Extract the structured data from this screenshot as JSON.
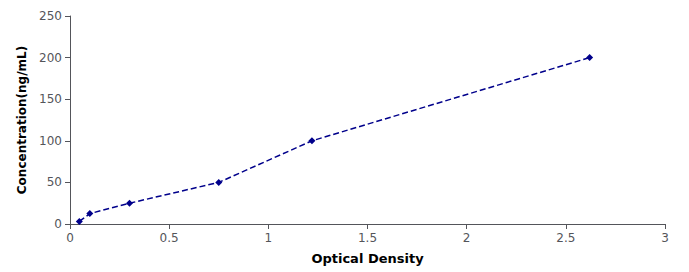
{
  "chart_data": {
    "type": "line",
    "xlabel": "Optical Density",
    "ylabel": "Concentration(ng/mL)",
    "x": [
      0.047,
      0.1,
      0.3,
      0.75,
      1.22,
      2.62
    ],
    "values": [
      3.125,
      12.5,
      25,
      50,
      100,
      200
    ],
    "color": "#00008B",
    "marker": "diamond",
    "line_style": "dashed",
    "xlim": [
      0,
      3
    ],
    "ylim": [
      0,
      250
    ],
    "xticks": [
      0,
      0.5,
      1,
      1.5,
      2,
      2.5,
      3
    ],
    "yticks": [
      0,
      50,
      100,
      150,
      200,
      250
    ],
    "grid": false
  }
}
